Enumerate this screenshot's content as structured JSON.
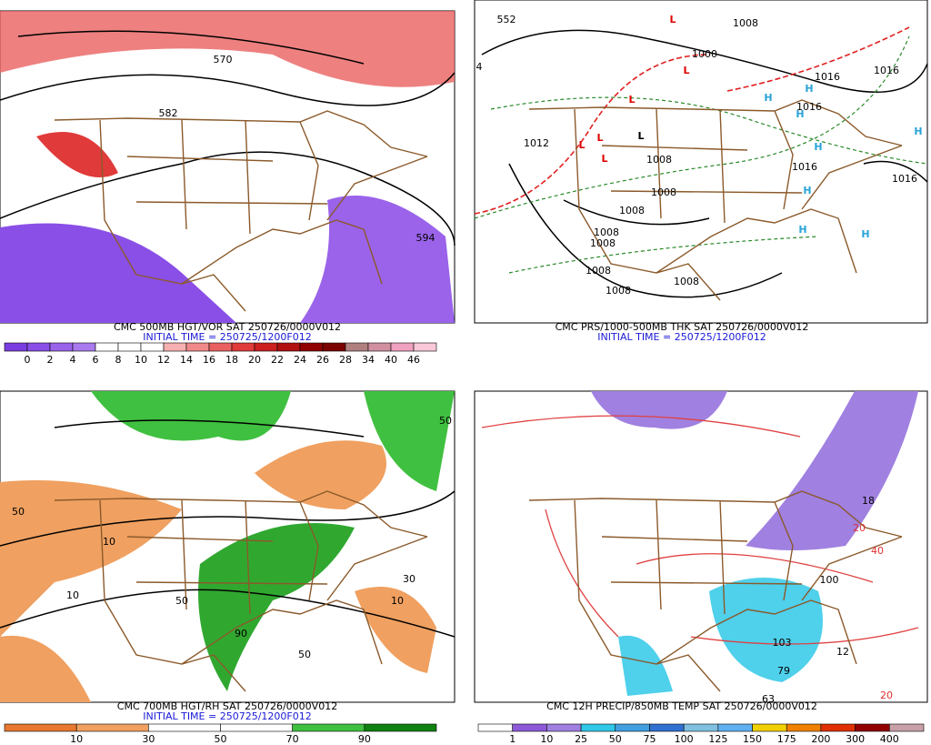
{
  "panels": [
    {
      "title": "CMC 500MB HGT/VOR SAT 250726/0000V012",
      "initial_time": "INITIAL TIME = 250725/1200F012",
      "colorbar": {
        "colors": [
          "#7a3ee0",
          "#8a4fe6",
          "#9a63ea",
          "#a97aed",
          "#ffffff",
          "#ffffff",
          "#ffffff",
          "#f6b0b0",
          "#f08a8a",
          "#ea6060",
          "#e03a3a",
          "#cc1f1f",
          "#b01010",
          "#900000",
          "#7a0000",
          "#b08080",
          "#d090a0",
          "#f0a0c0",
          "#f8c8d8"
        ],
        "labels": [
          0,
          2,
          4,
          6,
          8,
          10,
          12,
          14,
          16,
          18,
          20,
          22,
          24,
          26,
          28,
          34,
          40,
          46
        ]
      },
      "map_labels": [
        {
          "text": "552",
          "color": "#000000"
        },
        {
          "text": "570",
          "color": "#000000"
        },
        {
          "text": "582",
          "color": "#000000"
        },
        {
          "text": "594",
          "color": "#000000"
        }
      ]
    },
    {
      "title": "CMC PRS/1000-500MB THK SAT 250726/0000V012",
      "initial_time": "INITIAL TIME = 250725/1200F012",
      "map_labels": [
        {
          "text": "1008",
          "color": "#000000"
        },
        {
          "text": "1000",
          "color": "#000000"
        },
        {
          "text": "1016",
          "color": "#000000"
        },
        {
          "text": "1016",
          "color": "#000000"
        },
        {
          "text": "1012",
          "color": "#000000"
        },
        {
          "text": "1016",
          "color": "#000000"
        },
        {
          "text": "1016",
          "color": "#000000"
        },
        {
          "text": "1016",
          "color": "#000000"
        },
        {
          "text": "1008",
          "color": "#000000"
        },
        {
          "text": "1008",
          "color": "#000000"
        },
        {
          "text": "1008",
          "color": "#000000"
        },
        {
          "text": "1008",
          "color": "#000000"
        },
        {
          "text": "1008",
          "color": "#000000"
        },
        {
          "text": "1008",
          "color": "#000000"
        },
        {
          "text": "1008",
          "color": "#000000"
        },
        {
          "text": "1008",
          "color": "#000000"
        },
        {
          "text": "4",
          "color": "#000000"
        },
        {
          "text": "L",
          "color": "#e00000"
        },
        {
          "text": "L",
          "color": "#e00000"
        },
        {
          "text": "L",
          "color": "#e00000"
        },
        {
          "text": "L",
          "color": "#e00000"
        },
        {
          "text": "L",
          "color": "#e00000"
        },
        {
          "text": "L",
          "color": "#e00000"
        },
        {
          "text": "L",
          "color": "#000000"
        },
        {
          "text": "H",
          "color": "#29a3d9"
        },
        {
          "text": "H",
          "color": "#29a3d9"
        },
        {
          "text": "H",
          "color": "#29a3d9"
        },
        {
          "text": "H",
          "color": "#29a3d9"
        },
        {
          "text": "H",
          "color": "#29a3d9"
        },
        {
          "text": "H",
          "color": "#29a3d9"
        },
        {
          "text": "H",
          "color": "#29a3d9"
        },
        {
          "text": "H",
          "color": "#29a3d9"
        }
      ]
    },
    {
      "title": "CMC 700MB HGT/RH SAT 250726/0000V012",
      "initial_time": "INITIAL TIME = 250725/1200F012",
      "colorbar": {
        "colors": [
          "#e87830",
          "#f0a060",
          "#ffffff",
          "#ffffff",
          "#40c040",
          "#108010"
        ],
        "labels": [
          10,
          30,
          50,
          70,
          90
        ]
      },
      "map_labels": [
        {
          "text": "10",
          "color": "#000000"
        },
        {
          "text": "10",
          "color": "#000000"
        },
        {
          "text": "50",
          "color": "#000000"
        },
        {
          "text": "50",
          "color": "#000000"
        },
        {
          "text": "90",
          "color": "#000000"
        },
        {
          "text": "50",
          "color": "#000000"
        },
        {
          "text": "10",
          "color": "#000000"
        },
        {
          "text": "50",
          "color": "#000000"
        },
        {
          "text": "30",
          "color": "#000000"
        }
      ]
    },
    {
      "title": "CMC 12H PRECIP/850MB TEMP SAT 250726/0000V012",
      "colorbar": {
        "colors": [
          "#ffffff",
          "#8c5ad8",
          "#a080e0",
          "#30c8e8",
          "#40a0e0",
          "#3070d0",
          "#80c0e0",
          "#60b0f0",
          "#f0d000",
          "#f08000",
          "#e03000",
          "#900000",
          "#c8a0a8"
        ],
        "labels": [
          1,
          10,
          25,
          50,
          75,
          100,
          125,
          150,
          175,
          200,
          300,
          400
        ]
      },
      "map_labels": [
        {
          "text": "18",
          "color": "#000000"
        },
        {
          "text": "20",
          "color": "#e03030"
        },
        {
          "text": "40",
          "color": "#e03030"
        },
        {
          "text": "100",
          "color": "#000000"
        },
        {
          "text": "103",
          "color": "#000000"
        },
        {
          "text": "79",
          "color": "#000000"
        },
        {
          "text": "12",
          "color": "#000000"
        },
        {
          "text": "63",
          "color": "#000000"
        },
        {
          "text": "20",
          "color": "#e03030"
        }
      ]
    }
  ]
}
